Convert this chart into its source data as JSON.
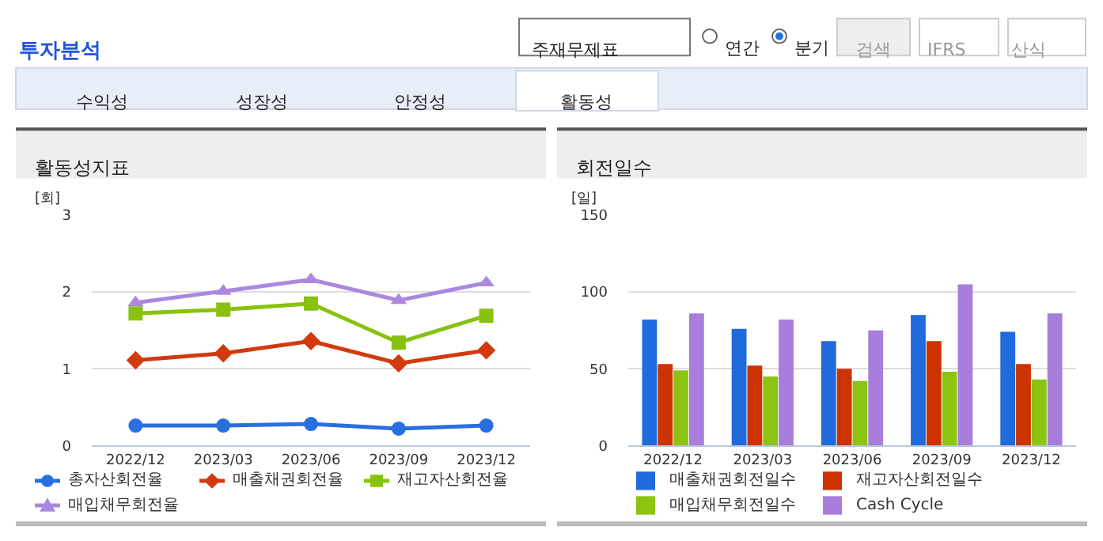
{
  "chart_data": [
    {
      "type": "other",
      "title": "투자분석",
      "annotations": [
        "주재무제표",
        "연간",
        "분기",
        "검색",
        "IFRS",
        "산식",
        "수익성",
        "성장성",
        "안정성",
        "활동성"
      ]
    },
    {
      "type": "line",
      "title": "활동성지표",
      "ylabel": "[회]",
      "categories": [
        "2022/12",
        "2023/03",
        "2023/06",
        "2023/09",
        "2023/12"
      ],
      "ylim": [
        0,
        3
      ],
      "yticks": [
        0,
        1,
        2,
        3
      ],
      "grid": "y",
      "legend": "bottom",
      "line_style": "solid",
      "series": [
        {
          "name": "총자산회전율",
          "color": "#2a6fe0",
          "marker": "circle",
          "values": [
            0.26,
            0.26,
            0.28,
            0.22,
            0.26
          ]
        },
        {
          "name": "매출채권회전율",
          "color": "#d23a0e",
          "marker": "diamond",
          "values": [
            1.11,
            1.2,
            1.36,
            1.07,
            1.24
          ]
        },
        {
          "name": "재고자산회전율",
          "color": "#88c20f",
          "marker": "square",
          "values": [
            1.72,
            1.77,
            1.85,
            1.34,
            1.69
          ]
        },
        {
          "name": "매입채무회전율",
          "color": "#aa88e0",
          "marker": "triangle",
          "values": [
            1.86,
            2.01,
            2.16,
            1.89,
            2.12
          ]
        }
      ]
    },
    {
      "type": "bar",
      "title": "회전일수",
      "ylabel": "[일]",
      "categories": [
        "2022/12",
        "2023/03",
        "2023/06",
        "2023/09",
        "2023/12"
      ],
      "ylim": [
        0,
        150
      ],
      "yticks": [
        0,
        50,
        100,
        150
      ],
      "grid": "y",
      "legend": "bottom",
      "series": [
        {
          "name": "매출채권회전일수",
          "color": "#1f6bdc",
          "values": [
            82,
            76,
            68,
            85,
            74
          ]
        },
        {
          "name": "재고자산회전일수",
          "color": "#cc3300",
          "values": [
            53,
            52,
            50,
            68,
            53
          ]
        },
        {
          "name": "매입채무회전일수",
          "color": "#8cc414",
          "values": [
            49,
            45,
            42,
            48,
            43
          ]
        },
        {
          "name": "Cash Cycle",
          "color": "#a87ddb",
          "values": [
            86,
            82,
            75,
            105,
            86
          ]
        }
      ]
    }
  ]
}
